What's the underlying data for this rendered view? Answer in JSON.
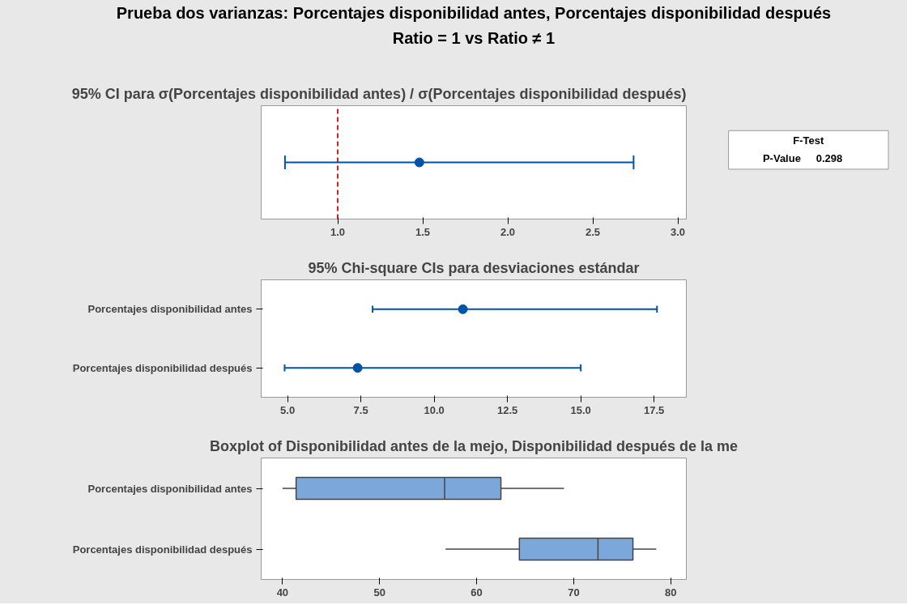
{
  "chart_data": [
    {
      "type": "other",
      "title": "Prueba dos varianzas: Porcentajes disponibilidad antes, Porcentajes disponibilidad después",
      "subtitle": "Ratio = 1 vs Ratio ≠ 1"
    },
    {
      "type": "scatter",
      "orientation": "horizontal",
      "title": "95% CI para σ(Porcentajes disponibilidad antes) / σ(Porcentajes disponibilidad después)",
      "categories": [
        null
      ],
      "values": [
        1.48
      ],
      "errors": [
        [
          0.69,
          2.74
        ]
      ],
      "color": "#0054a6",
      "marker": "circle",
      "xlim": [
        0.55,
        3.05
      ],
      "xticks": [
        {
          "value": 1,
          "label": "1.0"
        },
        {
          "value": 1.5,
          "label": "1.5"
        },
        {
          "value": 2,
          "label": "2.0"
        },
        {
          "value": 2.5,
          "label": "2.5"
        },
        {
          "value": 3,
          "label": "3.0"
        }
      ],
      "ref_lines": [
        {
          "axis": "x",
          "value": 1,
          "color": "#d62020",
          "line_style": "dashed"
        }
      ],
      "grid": false
    },
    {
      "type": "other",
      "annotations": [
        "F-Test",
        "P-Value",
        "0.298"
      ]
    },
    {
      "type": "scatter",
      "orientation": "horizontal",
      "title": "95% Chi-square CIs para desviaciones estándar",
      "categories": [
        "Porcentajes disponibilidad antes",
        "Porcentajes disponibilidad después"
      ],
      "values": [
        10.98,
        7.39
      ],
      "errors": [
        [
          7.9,
          17.6
        ],
        [
          4.9,
          15.0
        ]
      ],
      "color": "#0054a6",
      "marker": "circle",
      "xlim": [
        4.1,
        18.6
      ],
      "xticks": [
        {
          "value": 5,
          "label": "5.0"
        },
        {
          "value": 7.5,
          "label": "7.5"
        },
        {
          "value": 10,
          "label": "10.0"
        },
        {
          "value": 12.5,
          "label": "12.5"
        },
        {
          "value": 15,
          "label": "15.0"
        },
        {
          "value": 17.5,
          "label": "17.5"
        }
      ],
      "grid": false
    },
    {
      "type": "box",
      "orientation": "horizontal",
      "title": "Boxplot of Disponibilidad antes de la mejo, Disponibilidad después de la me",
      "categories": [
        "Porcentajes disponibilidad antes",
        "Porcentajes disponibilidad después"
      ],
      "color": "#7ba7db",
      "boxes": [
        {
          "low": 40.0,
          "q1": 41.4,
          "median": 56.7,
          "q3": 62.5,
          "high": 69.0
        },
        {
          "low": 56.8,
          "q1": 64.4,
          "median": 72.5,
          "q3": 76.1,
          "high": 78.5
        }
      ],
      "xlim": [
        37.8,
        81.6
      ],
      "xticks": [
        40,
        50,
        60,
        70,
        80
      ],
      "grid": false
    }
  ]
}
